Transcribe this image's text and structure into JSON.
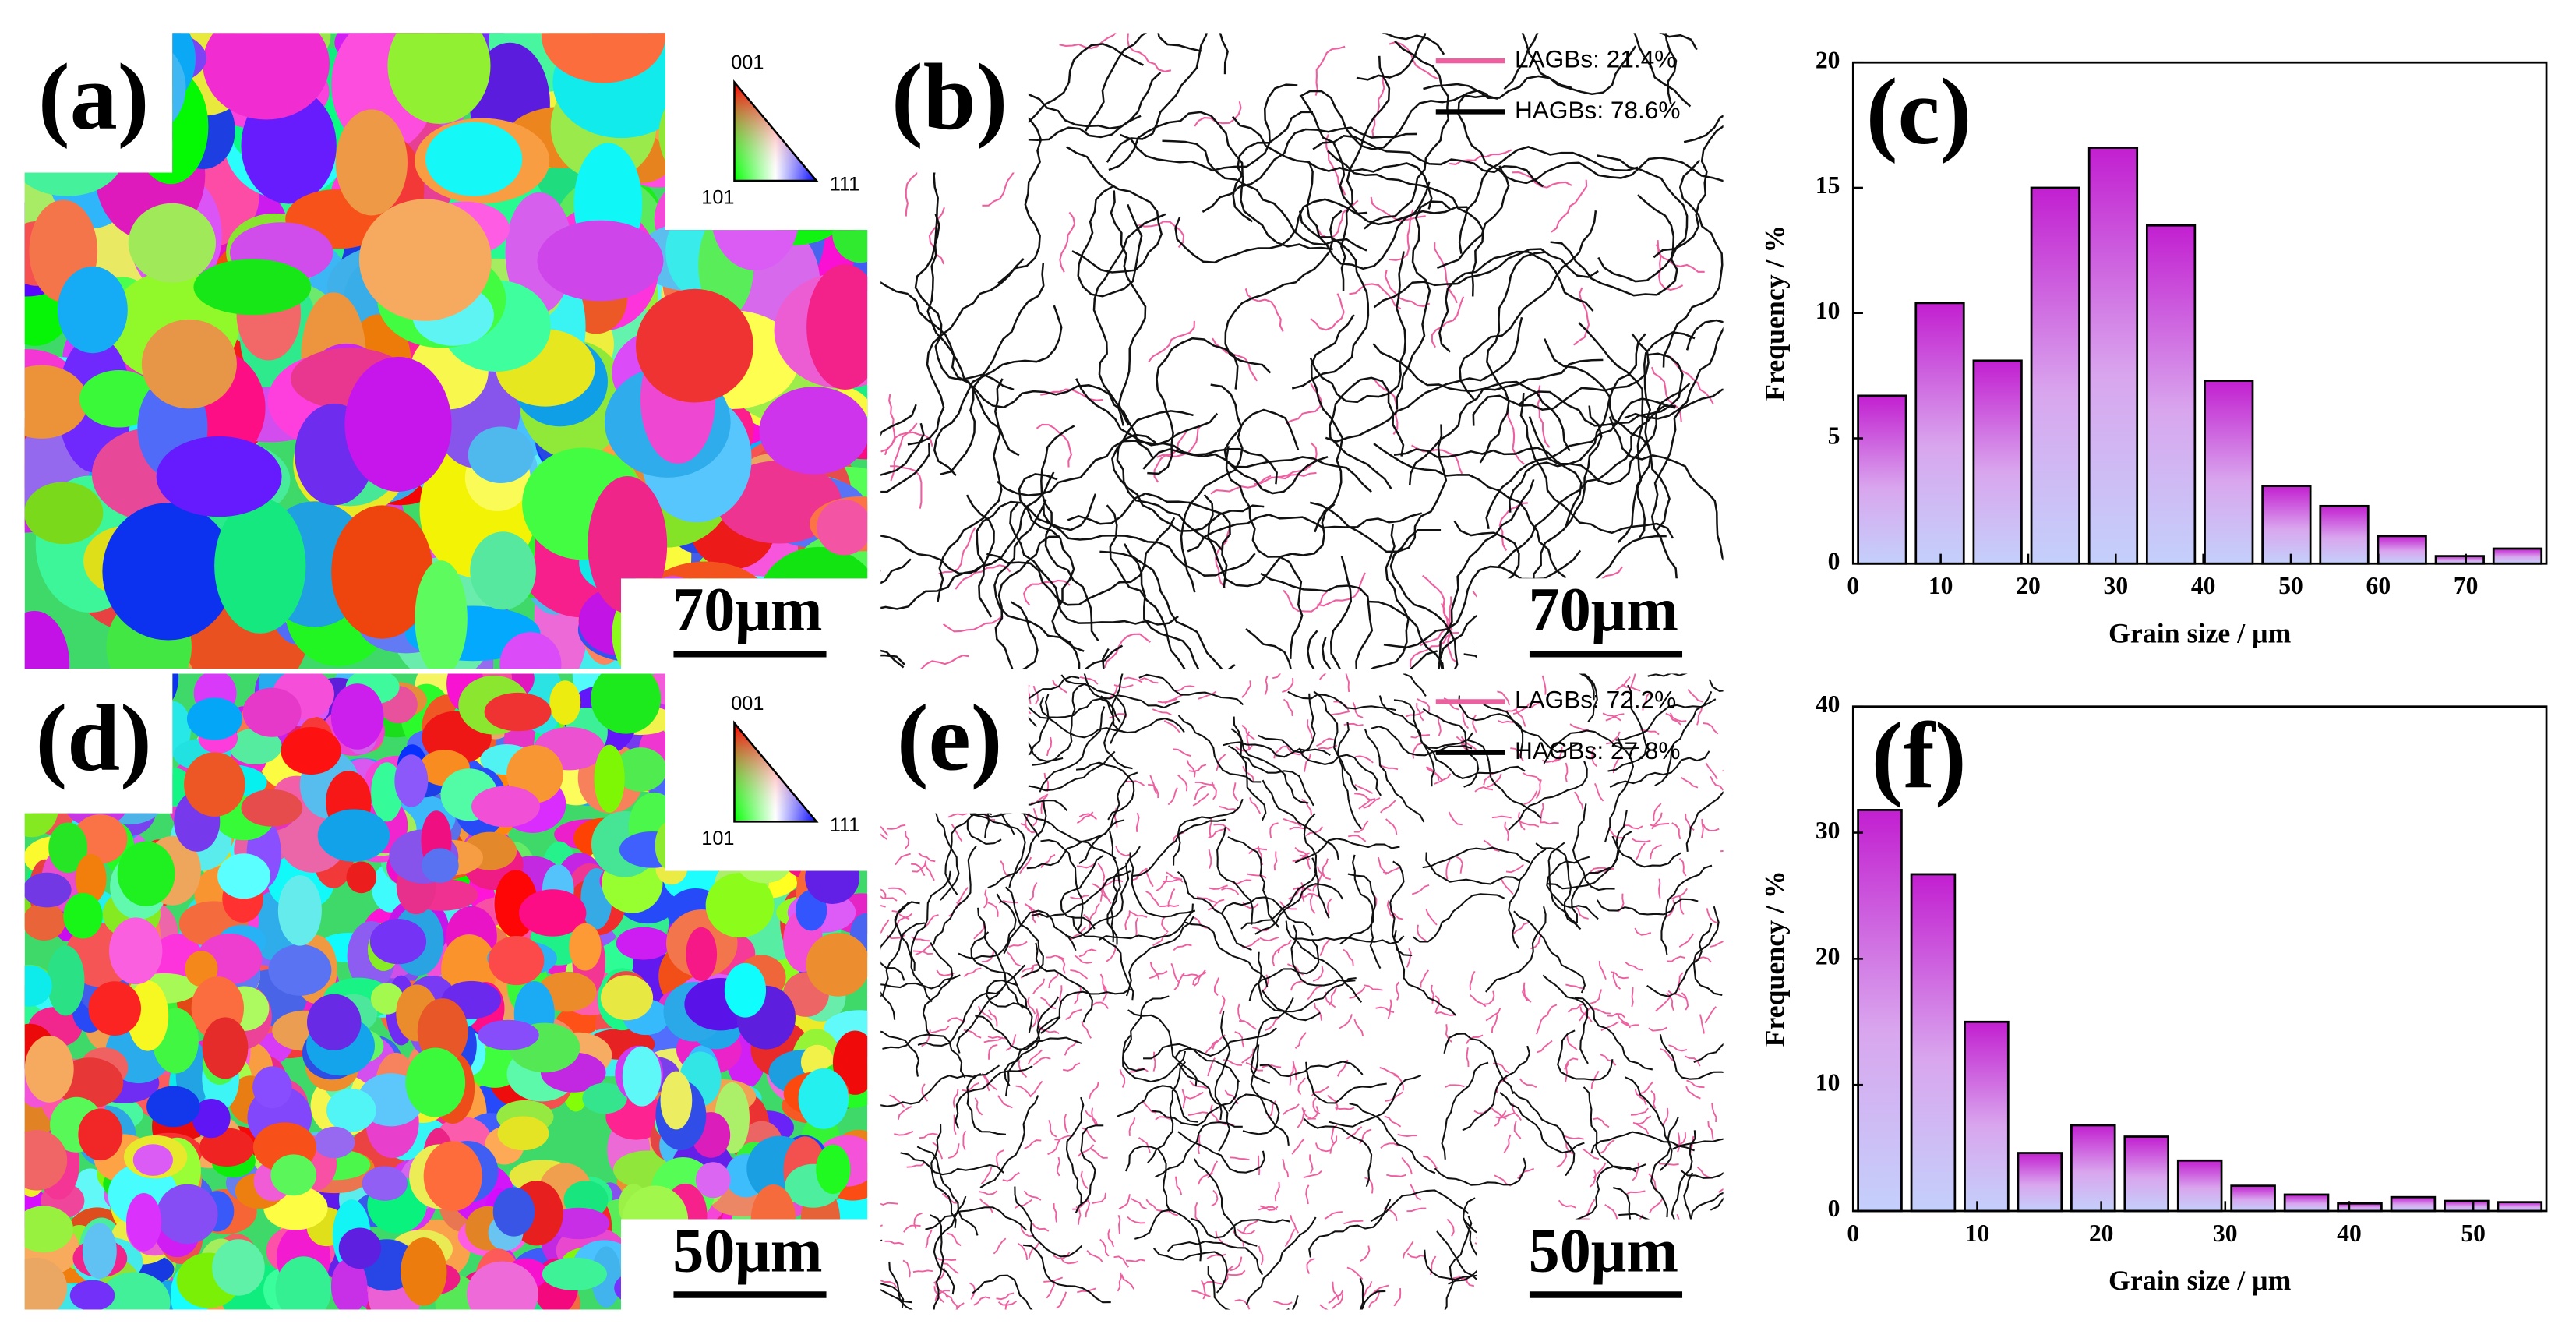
{
  "maps": [
    {
      "label": "(a)",
      "kind": "ipf",
      "scale_bar": "70μm",
      "ipf_key": [
        "001",
        "101",
        "111"
      ]
    },
    {
      "label": "(b)",
      "kind": "boundary",
      "scale_bar": "70μm",
      "legend": [
        "LAGBs: 21.4%",
        "HAGBs: 78.6%"
      ]
    },
    {
      "label": "(d)",
      "kind": "ipf",
      "scale_bar": "50μm",
      "ipf_key": [
        "001",
        "101",
        "111"
      ]
    },
    {
      "label": "(e)",
      "kind": "boundary",
      "scale_bar": "50μm",
      "legend": [
        "LAGBs: 72.2%",
        "HAGBs: 27.8%"
      ]
    }
  ],
  "chart_data": [
    {
      "type": "histogram",
      "panel_label": "(c)",
      "xlabel": "Grain size / μm",
      "ylabel": "Frequency / %",
      "bins": [
        0,
        6.6,
        13.2,
        19.8,
        26.4,
        33,
        39.6,
        46.2,
        52.8,
        59.4,
        66,
        72.6,
        79.2
      ],
      "values": [
        6.7,
        10.4,
        8.1,
        15.0,
        16.6,
        13.5,
        7.3,
        3.1,
        2.3,
        1.1,
        0.3,
        0.6
      ],
      "xlim": [
        0,
        79.2
      ],
      "xticks": [
        0,
        10,
        20,
        30,
        40,
        50,
        60,
        70
      ],
      "ylim": [
        0,
        20
      ],
      "yticks": [
        0,
        5,
        10,
        15,
        20
      ]
    },
    {
      "type": "histogram",
      "panel_label": "(f)",
      "xlabel": "Grain size / μm",
      "ylabel": "Frequency / %",
      "bins": [
        0,
        4.3,
        8.6,
        12.9,
        17.2,
        21.5,
        25.8,
        30.1,
        34.4,
        38.7,
        43,
        47.3,
        51.6,
        55.9
      ],
      "values": [
        31.8,
        26.7,
        15.0,
        4.6,
        6.8,
        5.9,
        4.0,
        2.0,
        1.3,
        0.6,
        1.1,
        0.8,
        0.7
      ],
      "xlim": [
        0,
        55.9
      ],
      "xticks": [
        0,
        10,
        20,
        30,
        40,
        50
      ],
      "ylim": [
        0,
        40
      ],
      "yticks": [
        0,
        10,
        20,
        30,
        40
      ]
    }
  ]
}
